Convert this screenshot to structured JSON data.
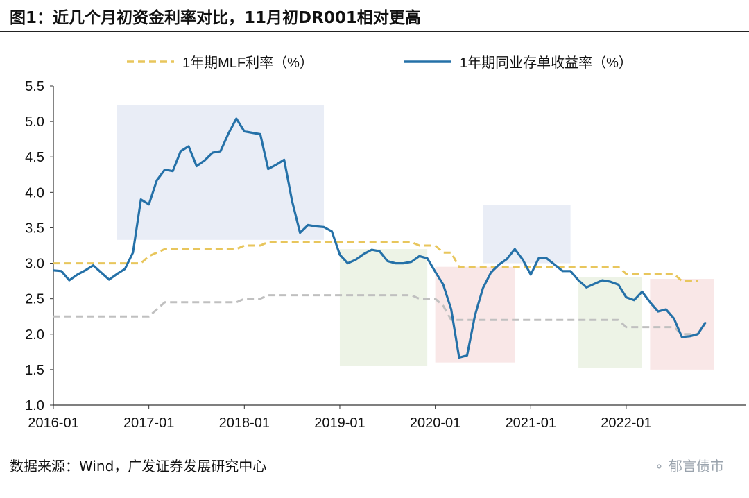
{
  "figure": {
    "title": "图1：近几个月初资金利率对比，11月初DR001相对更高",
    "source": "数据来源：Wind，广发证券发展研究中心",
    "watermark": "郁言债市"
  },
  "colors": {
    "mlf": "#E8C65C",
    "ncd": "#2571A8",
    "gray": "#C0C0C0",
    "blue_shade": "#E9EDF6",
    "green_shade": "#EDF3E6",
    "red_shade": "#F9E7E7"
  },
  "chart_data": {
    "type": "line",
    "title": "近几个月初资金利率对比，11月初DR001相对更高",
    "xlabel": "",
    "ylabel": "",
    "ylim": [
      1.0,
      5.5
    ],
    "yticks": [
      1.0,
      1.5,
      2.0,
      2.5,
      3.0,
      3.5,
      4.0,
      4.5,
      5.0,
      5.5
    ],
    "ytick_labels": [
      "1.0",
      "1.5",
      "2.0",
      "2.5",
      "3.0",
      "3.5",
      "4.0",
      "4.5",
      "5.0",
      "5.5"
    ],
    "x_range": [
      "2016-01",
      "2022-11"
    ],
    "xticks": [
      "2016-01",
      "2017-01",
      "2018-01",
      "2019-01",
      "2020-01",
      "2021-01",
      "2022-01"
    ],
    "legend_position": "top",
    "grid": false,
    "series": [
      {
        "name": "1年期MLF利率（%）",
        "style": "dashed",
        "color_key": "mlf",
        "points": [
          [
            "2016-01",
            3.0
          ],
          [
            "2016-12",
            3.0
          ],
          [
            "2017-01",
            3.1
          ],
          [
            "2017-03",
            3.2
          ],
          [
            "2017-12",
            3.2
          ],
          [
            "2018-01",
            3.25
          ],
          [
            "2018-03",
            3.25
          ],
          [
            "2018-04",
            3.3
          ],
          [
            "2019-10",
            3.3
          ],
          [
            "2019-11",
            3.25
          ],
          [
            "2020-01",
            3.25
          ],
          [
            "2020-02",
            3.15
          ],
          [
            "2020-03",
            3.15
          ],
          [
            "2020-04",
            2.95
          ],
          [
            "2021-12",
            2.95
          ],
          [
            "2022-01",
            2.85
          ],
          [
            "2022-07",
            2.85
          ],
          [
            "2022-08",
            2.75
          ],
          [
            "2022-10",
            2.75
          ]
        ]
      },
      {
        "name": "1年期同业存单收益率（%）",
        "style": "solid",
        "color_key": "ncd",
        "points": [
          [
            "2016-01",
            2.9
          ],
          [
            "2016-02",
            2.89
          ],
          [
            "2016-03",
            2.76
          ],
          [
            "2016-04",
            2.84
          ],
          [
            "2016-05",
            2.9
          ],
          [
            "2016-06",
            2.97
          ],
          [
            "2016-07",
            2.87
          ],
          [
            "2016-08",
            2.77
          ],
          [
            "2016-09",
            2.85
          ],
          [
            "2016-10",
            2.92
          ],
          [
            "2016-11",
            3.15
          ],
          [
            "2016-12",
            3.9
          ],
          [
            "2017-01",
            3.83
          ],
          [
            "2017-02",
            4.17
          ],
          [
            "2017-03",
            4.32
          ],
          [
            "2017-04",
            4.3
          ],
          [
            "2017-05",
            4.58
          ],
          [
            "2017-06",
            4.65
          ],
          [
            "2017-07",
            4.37
          ],
          [
            "2017-08",
            4.45
          ],
          [
            "2017-09",
            4.56
          ],
          [
            "2017-10",
            4.58
          ],
          [
            "2017-11",
            4.83
          ],
          [
            "2017-12",
            5.04
          ],
          [
            "2018-01",
            4.86
          ],
          [
            "2018-02",
            4.84
          ],
          [
            "2018-03",
            4.82
          ],
          [
            "2018-04",
            4.33
          ],
          [
            "2018-05",
            4.39
          ],
          [
            "2018-06",
            4.46
          ],
          [
            "2018-07",
            3.88
          ],
          [
            "2018-08",
            3.43
          ],
          [
            "2018-09",
            3.54
          ],
          [
            "2018-10",
            3.52
          ],
          [
            "2018-11",
            3.51
          ],
          [
            "2018-12",
            3.45
          ],
          [
            "2019-01",
            3.12
          ],
          [
            "2019-02",
            3.0
          ],
          [
            "2019-03",
            3.05
          ],
          [
            "2019-04",
            3.13
          ],
          [
            "2019-05",
            3.19
          ],
          [
            "2019-06",
            3.17
          ],
          [
            "2019-07",
            3.03
          ],
          [
            "2019-08",
            3.0
          ],
          [
            "2019-09",
            3.0
          ],
          [
            "2019-10",
            3.02
          ],
          [
            "2019-11",
            3.1
          ],
          [
            "2019-12",
            3.07
          ],
          [
            "2020-01",
            2.88
          ],
          [
            "2020-02",
            2.7
          ],
          [
            "2020-03",
            2.35
          ],
          [
            "2020-04",
            1.67
          ],
          [
            "2020-05",
            1.7
          ],
          [
            "2020-06",
            2.27
          ],
          [
            "2020-07",
            2.65
          ],
          [
            "2020-08",
            2.87
          ],
          [
            "2020-09",
            2.98
          ],
          [
            "2020-10",
            3.06
          ],
          [
            "2020-11",
            3.2
          ],
          [
            "2020-12",
            3.05
          ],
          [
            "2021-01",
            2.84
          ],
          [
            "2021-02",
            3.07
          ],
          [
            "2021-03",
            3.07
          ],
          [
            "2021-04",
            2.98
          ],
          [
            "2021-05",
            2.89
          ],
          [
            "2021-06",
            2.89
          ],
          [
            "2021-07",
            2.76
          ],
          [
            "2021-08",
            2.66
          ],
          [
            "2021-09",
            2.71
          ],
          [
            "2021-10",
            2.76
          ],
          [
            "2021-11",
            2.74
          ],
          [
            "2021-12",
            2.7
          ],
          [
            "2022-01",
            2.52
          ],
          [
            "2022-02",
            2.48
          ],
          [
            "2022-03",
            2.6
          ],
          [
            "2022-04",
            2.45
          ],
          [
            "2022-05",
            2.32
          ],
          [
            "2022-06",
            2.35
          ],
          [
            "2022-07",
            2.22
          ],
          [
            "2022-08",
            1.96
          ],
          [
            "2022-09",
            1.97
          ],
          [
            "2022-10",
            2.0
          ],
          [
            "2022-11",
            2.17
          ]
        ]
      },
      {
        "name": "",
        "style": "dashed",
        "color_key": "gray",
        "points": [
          [
            "2016-01",
            2.25
          ],
          [
            "2017-01",
            2.25
          ],
          [
            "2017-03",
            2.45
          ],
          [
            "2017-12",
            2.45
          ],
          [
            "2018-01",
            2.5
          ],
          [
            "2018-03",
            2.5
          ],
          [
            "2018-04",
            2.55
          ],
          [
            "2019-10",
            2.55
          ],
          [
            "2019-11",
            2.5
          ],
          [
            "2020-01",
            2.5
          ],
          [
            "2020-02",
            2.4
          ],
          [
            "2020-03",
            2.2
          ],
          [
            "2021-12",
            2.2
          ],
          [
            "2022-01",
            2.1
          ],
          [
            "2022-07",
            2.1
          ],
          [
            "2022-08",
            2.0
          ],
          [
            "2022-10",
            2.0
          ]
        ]
      }
    ],
    "shaded_regions": [
      {
        "start": "2016-09",
        "end": "2018-11",
        "ymin": 3.33,
        "ymax": 5.23,
        "color_key": "blue_shade"
      },
      {
        "start": "2019-01",
        "end": "2019-12",
        "ymin": 1.55,
        "ymax": 3.2,
        "color_key": "green_shade"
      },
      {
        "start": "2020-01",
        "end": "2020-11",
        "ymin": 1.6,
        "ymax": 2.95,
        "color_key": "red_shade"
      },
      {
        "start": "2020-07",
        "end": "2021-06",
        "ymin": 3.0,
        "ymax": 3.82,
        "color_key": "blue_shade"
      },
      {
        "start": "2021-07",
        "end": "2022-03",
        "ymin": 1.52,
        "ymax": 2.8,
        "color_key": "green_shade"
      },
      {
        "start": "2022-04",
        "end": "2022-12",
        "ymin": 1.5,
        "ymax": 2.78,
        "color_key": "red_shade"
      }
    ]
  }
}
